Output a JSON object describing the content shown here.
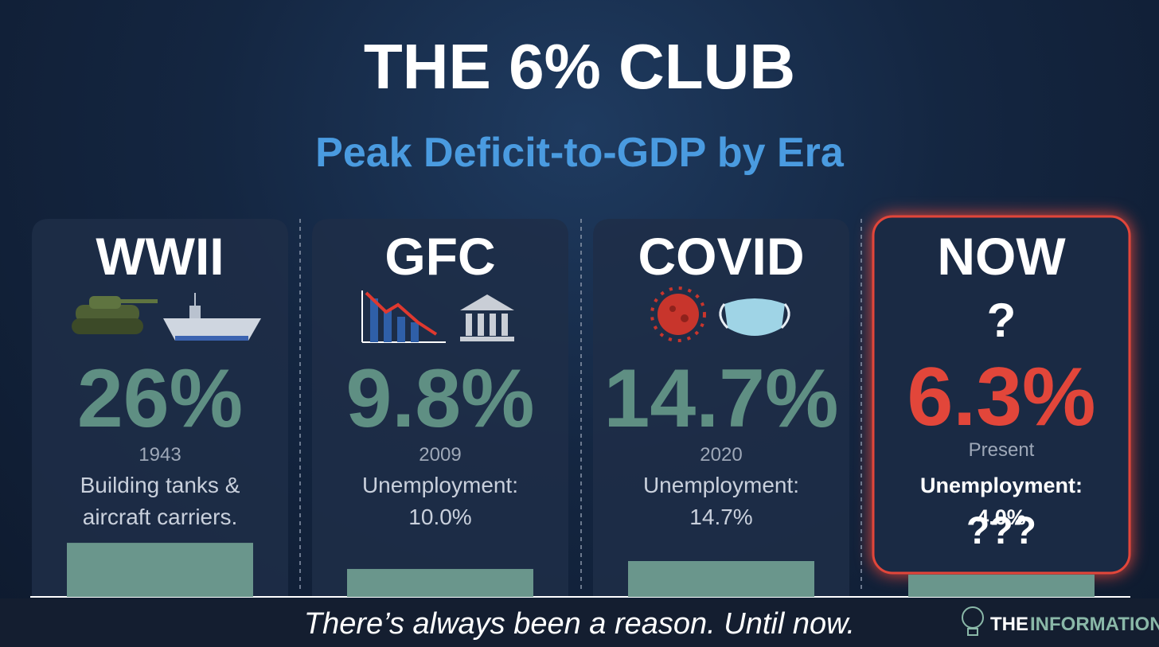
{
  "chart_data": {
    "type": "bar",
    "title": "THE 6% CLUB",
    "subtitle": "Peak Deficit-to-GDP by Era",
    "categories": [
      "WWII",
      "GFC",
      "COVID",
      "NOW"
    ],
    "values": [
      26,
      9.8,
      14.7,
      6.3
    ],
    "value_labels": [
      "26%",
      "9.8%",
      "14.7%",
      "6.3%"
    ],
    "value_label_colors": [
      "#5f8f83",
      "#5f8f83",
      "#5f8f83",
      "#e2463a"
    ],
    "periods": [
      "1943",
      "2009",
      "2020",
      "Present"
    ],
    "notes": [
      "Building tanks & aircraft carriers.",
      "Unemployment: 10.0%",
      "Unemployment: 14.7%",
      "Unemployment: 4.0%"
    ],
    "badges": [
      null,
      null,
      null,
      "?"
    ],
    "footnotes": [
      null,
      null,
      null,
      "???"
    ],
    "highlight_color": "#e2463a",
    "color": "#6a968c",
    "ylim": [
      -7.5,
      30
    ]
  },
  "caption": "There’s always been a reason. Until now.",
  "brand": [
    "THE",
    "INFORMATIONIST"
  ]
}
